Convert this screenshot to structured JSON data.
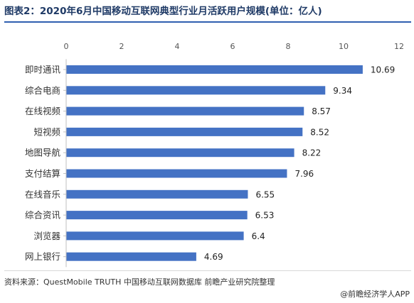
{
  "title": "图表2：2020年6月中国移动互联网典型行业月活跃用户规模(单位：亿人)",
  "source": "资料来源：QuestMobile TRUTH 中国移动互联网数据库 前瞻产业研究院整理",
  "brand": "@前瞻经济学人APP",
  "colors": {
    "bar": "#4472c4",
    "title": "#1f3a66"
  },
  "chart_data": {
    "type": "bar",
    "orientation": "horizontal",
    "categories": [
      "即时通讯",
      "综合电商",
      "在线视频",
      "短视频",
      "地图导航",
      "支付结算",
      "在线音乐",
      "综合资讯",
      "浏览器",
      "网上银行"
    ],
    "values": [
      10.69,
      9.34,
      8.57,
      8.52,
      8.22,
      7.96,
      6.55,
      6.53,
      6.4,
      4.69
    ],
    "value_labels": [
      "10.69",
      "9.34",
      "8.57",
      "8.52",
      "8.22",
      "7.96",
      "6.55",
      "6.53",
      "6.4",
      "4.69"
    ],
    "xlim": [
      0,
      12
    ],
    "x_ticks": [
      0,
      2,
      4,
      6,
      8,
      10,
      12
    ],
    "x_tick_labels": [
      "0",
      "2",
      "4",
      "6",
      "8",
      "10",
      "12"
    ],
    "x_axis_position": "top",
    "grid": false
  }
}
